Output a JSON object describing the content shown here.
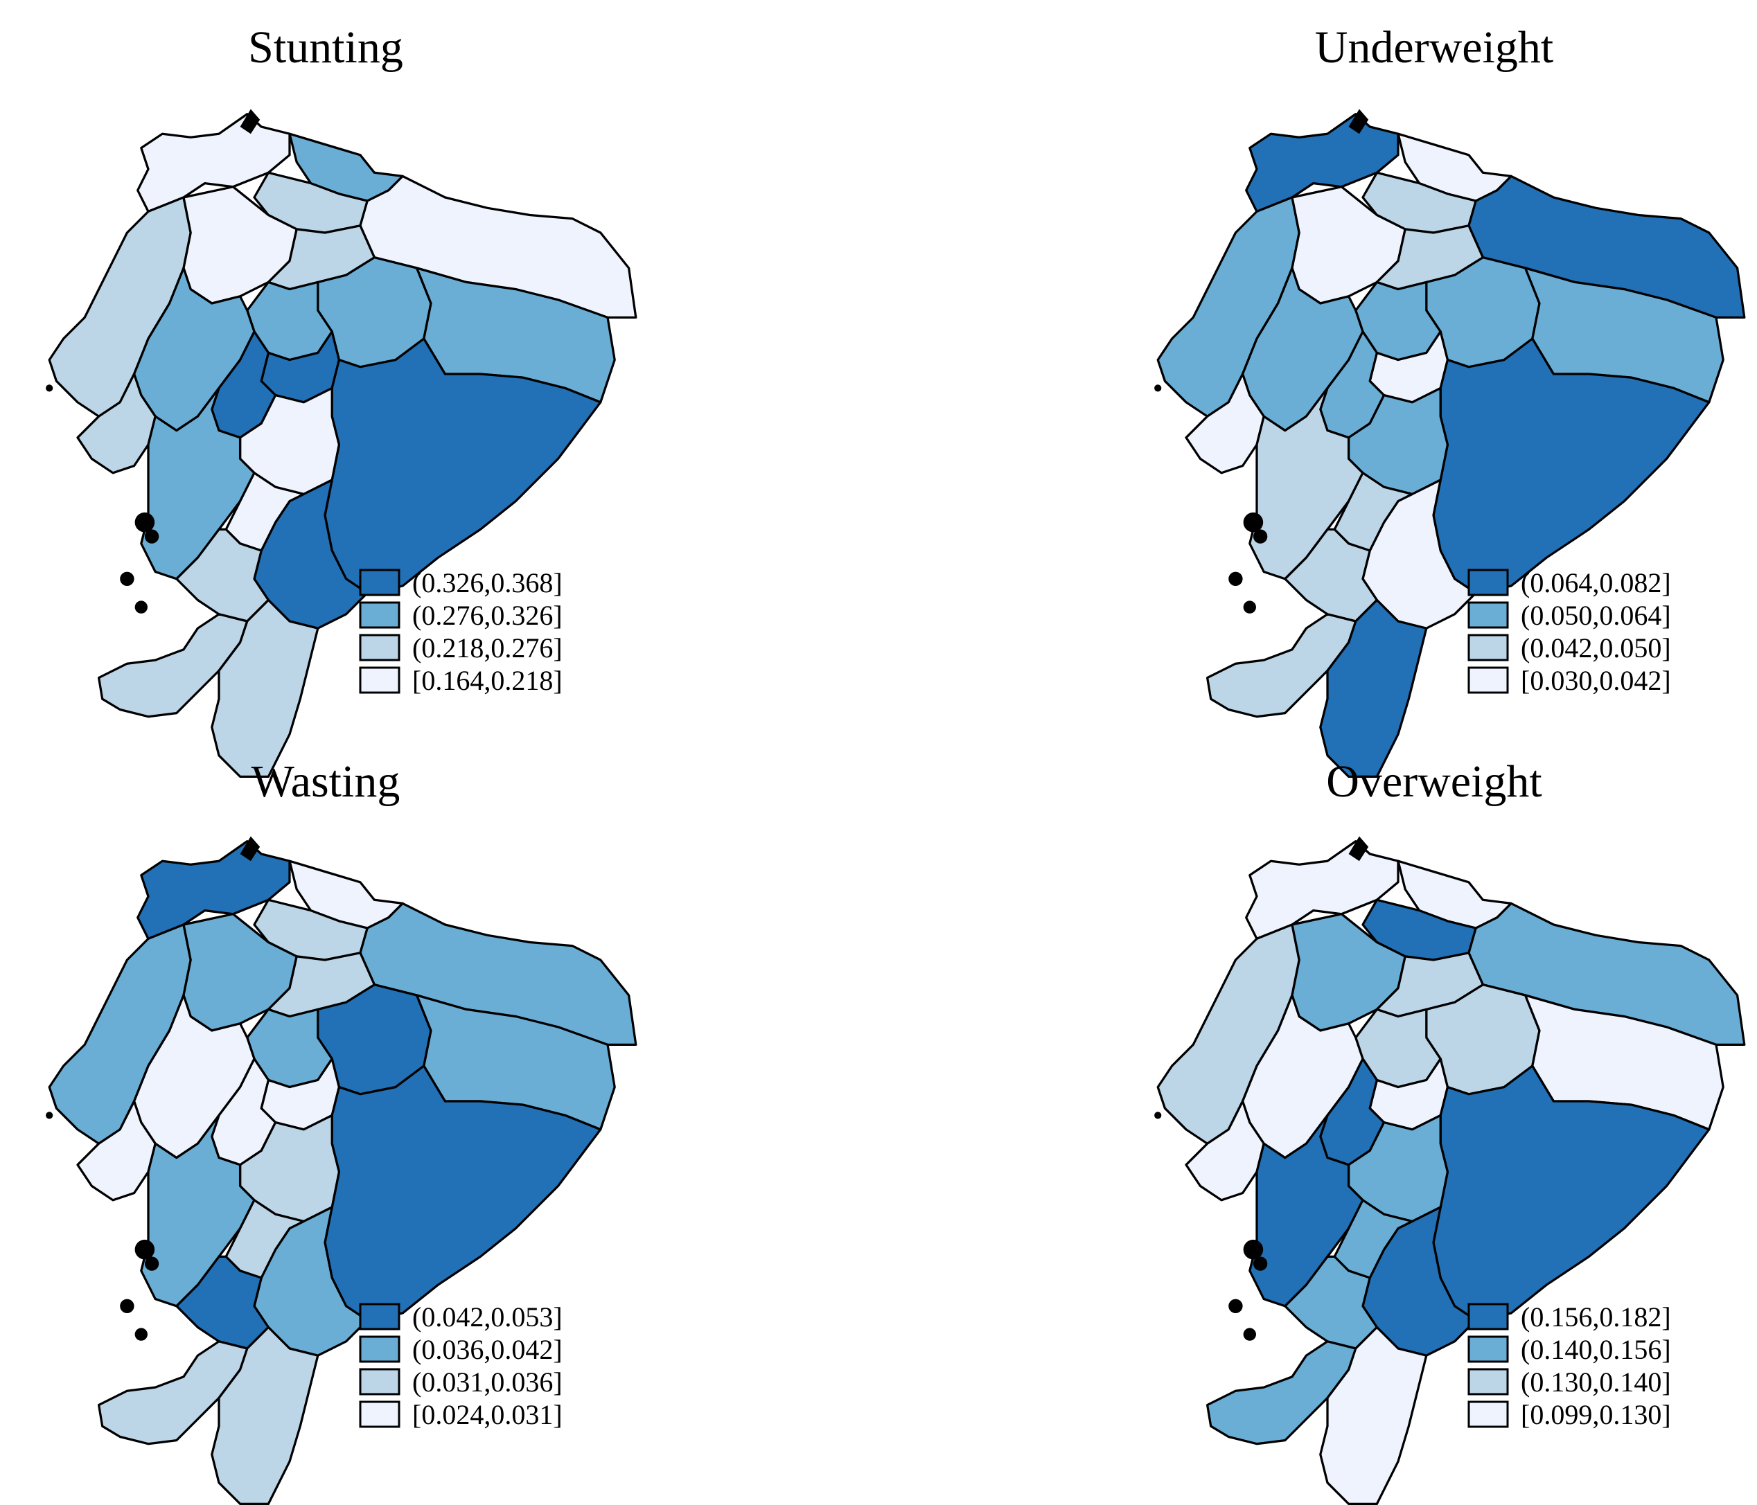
{
  "figure": {
    "colors": {
      "level4": "#2270b5",
      "level3": "#6aaed6",
      "level2": "#bcd6e8",
      "level1": "#eef3fd"
    },
    "panels": [
      {
        "id": "stunting",
        "title": "Stunting",
        "legend": [
          "(0.326,0.368]",
          "(0.276,0.326]",
          "(0.218,0.276]",
          "[0.164,0.218]"
        ],
        "fills": [
          "level1",
          "level3",
          "level2",
          "level1",
          "level2",
          "level1",
          "level2",
          "level3",
          "level3",
          "level3",
          "level3",
          "level4",
          "level4",
          "level4",
          "level1",
          "level2",
          "level3",
          "level4",
          "level1",
          "level2",
          "level2",
          "level2"
        ]
      },
      {
        "id": "underweight",
        "title": "Underweight",
        "legend": [
          "(0.064,0.082]",
          "(0.050,0.064]",
          "(0.042,0.050]",
          "[0.030,0.042]"
        ],
        "fills": [
          "level4",
          "level1",
          "level2",
          "level4",
          "level3",
          "level1",
          "level2",
          "level3",
          "level3",
          "level3",
          "level3",
          "level1",
          "level3",
          "level4",
          "level3",
          "level1",
          "level2",
          "level1",
          "level2",
          "level2",
          "level2",
          "level4"
        ]
      },
      {
        "id": "wasting",
        "title": "Wasting",
        "legend": [
          "(0.042,0.053]",
          "(0.036,0.042]",
          "(0.031,0.036]",
          "[0.024,0.031]"
        ],
        "fills": [
          "level4",
          "level1",
          "level2",
          "level3",
          "level3",
          "level3",
          "level2",
          "level4",
          "level3",
          "level3",
          "level1",
          "level1",
          "level1",
          "level4",
          "level2",
          "level1",
          "level3",
          "level3",
          "level2",
          "level4",
          "level2",
          "level2"
        ]
      },
      {
        "id": "overweight",
        "title": "Overweight",
        "legend": [
          "(0.156,0.182]",
          "(0.140,0.156]",
          "(0.130,0.140]",
          "[0.099,0.130]"
        ],
        "fills": [
          "level1",
          "level1",
          "level4",
          "level3",
          "level2",
          "level3",
          "level2",
          "level2",
          "level1",
          "level2",
          "level1",
          "level1",
          "level4",
          "level4",
          "level3",
          "level1",
          "level4",
          "level4",
          "level3",
          "level3",
          "level3",
          "level1"
        ]
      }
    ]
  }
}
